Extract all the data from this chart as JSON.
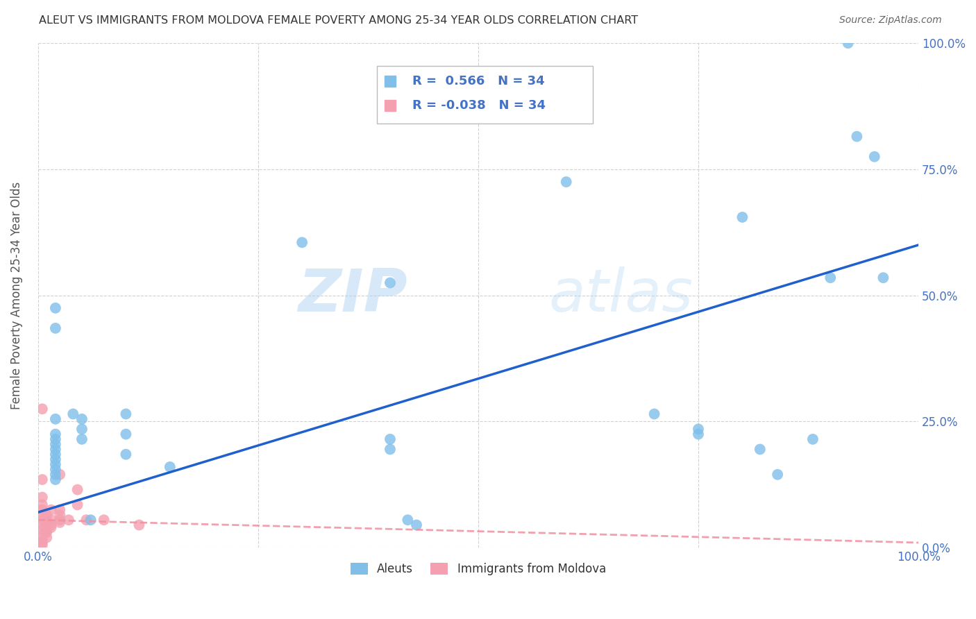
{
  "title": "ALEUT VS IMMIGRANTS FROM MOLDOVA FEMALE POVERTY AMONG 25-34 YEAR OLDS CORRELATION CHART",
  "source": "Source: ZipAtlas.com",
  "ylabel": "Female Poverty Among 25-34 Year Olds",
  "xlim": [
    0.0,
    1.0
  ],
  "ylim": [
    0.0,
    1.0
  ],
  "ytick_positions": [
    0.0,
    0.25,
    0.5,
    0.75,
    1.0
  ],
  "ytick_labels": [
    "0.0%",
    "25.0%",
    "50.0%",
    "75.0%",
    "100.0%"
  ],
  "watermark_zip": "ZIP",
  "watermark_atlas": "atlas",
  "aleuts_color": "#7fbfea",
  "moldova_color": "#f4a0b0",
  "aleuts_line_color": "#2060cc",
  "moldova_line_color": "#f090a0",
  "background_color": "#ffffff",
  "grid_color": "#cccccc",
  "title_color": "#333333",
  "axis_label_color": "#555555",
  "tick_label_color": "#4472c4",
  "aleuts_scatter": [
    [
      0.02,
      0.475
    ],
    [
      0.02,
      0.435
    ],
    [
      0.02,
      0.255
    ],
    [
      0.02,
      0.225
    ],
    [
      0.02,
      0.215
    ],
    [
      0.02,
      0.205
    ],
    [
      0.02,
      0.195
    ],
    [
      0.02,
      0.185
    ],
    [
      0.02,
      0.175
    ],
    [
      0.02,
      0.165
    ],
    [
      0.02,
      0.155
    ],
    [
      0.02,
      0.145
    ],
    [
      0.02,
      0.135
    ],
    [
      0.04,
      0.265
    ],
    [
      0.05,
      0.255
    ],
    [
      0.05,
      0.235
    ],
    [
      0.05,
      0.215
    ],
    [
      0.06,
      0.055
    ],
    [
      0.1,
      0.265
    ],
    [
      0.1,
      0.225
    ],
    [
      0.1,
      0.185
    ],
    [
      0.15,
      0.16
    ],
    [
      0.3,
      0.605
    ],
    [
      0.4,
      0.525
    ],
    [
      0.4,
      0.215
    ],
    [
      0.4,
      0.195
    ],
    [
      0.42,
      0.055
    ],
    [
      0.43,
      0.045
    ],
    [
      0.6,
      0.725
    ],
    [
      0.7,
      0.265
    ],
    [
      0.75,
      0.235
    ],
    [
      0.75,
      0.225
    ],
    [
      0.8,
      0.655
    ],
    [
      0.82,
      0.195
    ],
    [
      0.84,
      0.145
    ],
    [
      0.88,
      0.215
    ],
    [
      0.9,
      0.535
    ],
    [
      0.92,
      1.0
    ],
    [
      0.93,
      0.815
    ],
    [
      0.95,
      0.775
    ],
    [
      0.96,
      0.535
    ]
  ],
  "moldova_scatter": [
    [
      0.005,
      0.275
    ],
    [
      0.005,
      0.135
    ],
    [
      0.005,
      0.1
    ],
    [
      0.005,
      0.085
    ],
    [
      0.005,
      0.075
    ],
    [
      0.005,
      0.065
    ],
    [
      0.005,
      0.055
    ],
    [
      0.005,
      0.045
    ],
    [
      0.005,
      0.035
    ],
    [
      0.005,
      0.025
    ],
    [
      0.005,
      0.015
    ],
    [
      0.005,
      0.01
    ],
    [
      0.005,
      0.005
    ],
    [
      0.01,
      0.065
    ],
    [
      0.01,
      0.055
    ],
    [
      0.01,
      0.045
    ],
    [
      0.01,
      0.035
    ],
    [
      0.01,
      0.03
    ],
    [
      0.01,
      0.02
    ],
    [
      0.015,
      0.075
    ],
    [
      0.015,
      0.055
    ],
    [
      0.015,
      0.045
    ],
    [
      0.015,
      0.04
    ],
    [
      0.025,
      0.145
    ],
    [
      0.025,
      0.075
    ],
    [
      0.025,
      0.065
    ],
    [
      0.025,
      0.055
    ],
    [
      0.025,
      0.05
    ],
    [
      0.035,
      0.055
    ],
    [
      0.045,
      0.115
    ],
    [
      0.045,
      0.085
    ],
    [
      0.055,
      0.055
    ],
    [
      0.075,
      0.055
    ],
    [
      0.115,
      0.045
    ]
  ],
  "aleuts_line": [
    0.0,
    0.07,
    1.0,
    0.6
  ],
  "moldova_line": [
    0.0,
    0.055,
    1.0,
    0.01
  ]
}
